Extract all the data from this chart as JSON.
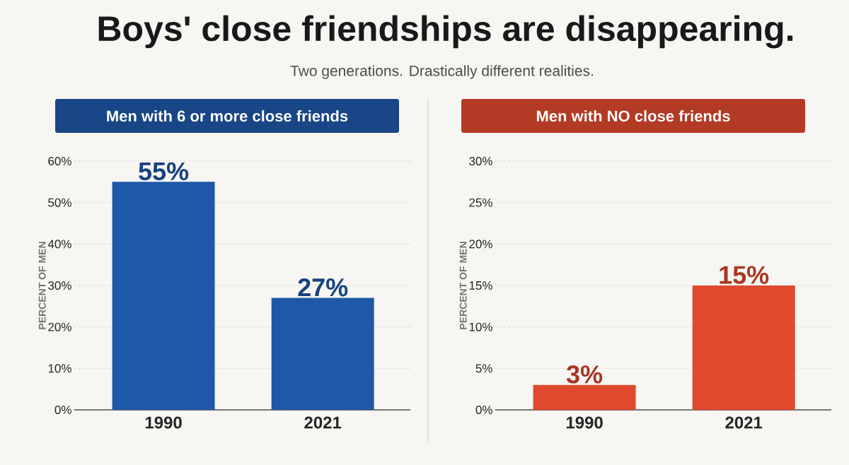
{
  "chart_data": [
    {
      "type": "bar",
      "title": "Men with 6 or more close friends",
      "annotations": [
        "Boys' close friendships are disappearing.",
        "Two generations. Drastically different realities."
      ],
      "ylabel": "PERCENT OF MEN",
      "categories": [
        "1990",
        "2021"
      ],
      "values": [
        55,
        27
      ],
      "value_labels": [
        "55%",
        "27%"
      ],
      "color": "#1f58a9",
      "ylim": [
        0,
        60
      ],
      "yticks": [
        {
          "value": 0,
          "label": "0%"
        },
        {
          "value": 10,
          "label": "10%"
        },
        {
          "value": 20,
          "label": "20%"
        },
        {
          "value": 30,
          "label": "30%"
        },
        {
          "value": 40,
          "label": "40%"
        },
        {
          "value": 50,
          "label": "50%"
        },
        {
          "value": 60,
          "label": "60%"
        }
      ],
      "grid": "y"
    },
    {
      "type": "bar",
      "title": "Men with NO close friends",
      "ylabel": "PERCENT OF MEN",
      "categories": [
        "1990",
        "2021"
      ],
      "values": [
        3,
        15
      ],
      "value_labels": [
        "3%",
        "15%"
      ],
      "color": "#e0492d",
      "ylim": [
        0,
        30
      ],
      "yticks": [
        {
          "value": 0,
          "label": "0%"
        },
        {
          "value": 5,
          "label": "5%"
        },
        {
          "value": 10,
          "label": "10%"
        },
        {
          "value": 15,
          "label": "15%"
        },
        {
          "value": 20,
          "label": "20%"
        },
        {
          "value": 25,
          "label": "25%"
        },
        {
          "value": 30,
          "label": "30%"
        }
      ],
      "grid": "y"
    }
  ]
}
